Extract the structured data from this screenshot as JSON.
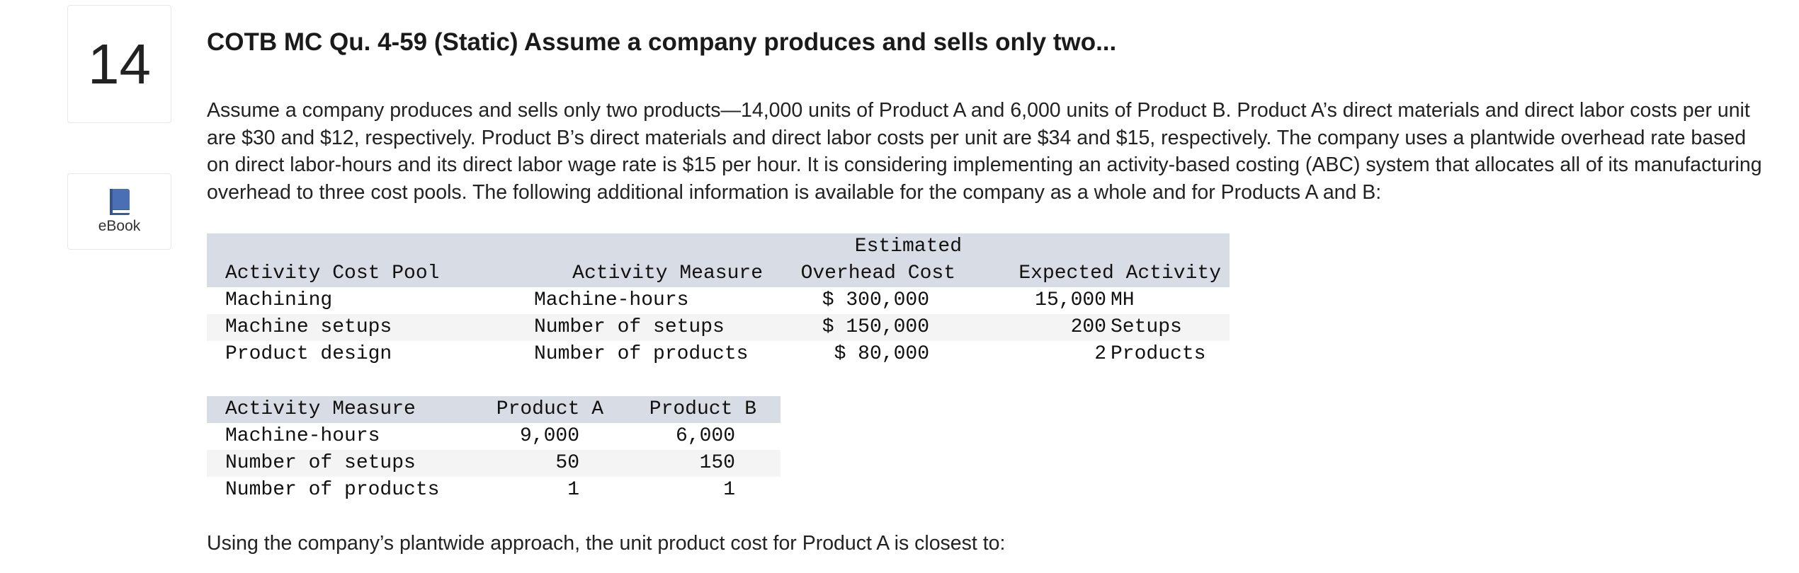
{
  "question_number": "14",
  "ebook": {
    "label": "eBook",
    "icon": "book-icon"
  },
  "title": "COTB MC Qu. 4-59 (Static) Assume a company produces and sells only two...",
  "prompt": "Assume a company produces and sells only two products—14,000 units of Product A and 6,000 units of Product B. Product A’s direct materials and direct labor costs per unit are $30 and $12, respectively. Product B’s direct materials and direct labor costs per unit are $34 and $15, respectively. The company uses a plantwide overhead rate based on direct labor-hours and its direct labor wage rate is $15 per hour. It is considering implementing an activity-based costing (ABC) system that allocates all of its manufacturing overhead to three cost pools. The following additional information is available for the company as a whole and for Products A and B:",
  "cost_pool_table": {
    "headers": {
      "pool": "Activity Cost Pool",
      "measure": "Activity Measure",
      "cost_line1": "Estimated",
      "cost_line2": "Overhead Cost",
      "activity": "Expected Activity"
    },
    "rows": [
      {
        "pool": "Machining",
        "measure": "Machine-hours",
        "cost": "$ 300,000",
        "qty": "15,000",
        "unit": "MH"
      },
      {
        "pool": "Machine setups",
        "measure": "Number of setups",
        "cost": "$ 150,000",
        "qty": "200",
        "unit": "Setups"
      },
      {
        "pool": "Product design",
        "measure": "Number of products",
        "cost": "$ 80,000",
        "qty": "2",
        "unit": "Products"
      }
    ]
  },
  "product_table": {
    "headers": {
      "measure": "Activity Measure",
      "a": "Product A",
      "b": "Product B"
    },
    "rows": [
      {
        "measure": "Machine-hours",
        "a": "9,000",
        "b": "6,000"
      },
      {
        "measure": "Number of setups",
        "a": "50",
        "b": "150"
      },
      {
        "measure": "Number of products",
        "a": "1",
        "b": "1"
      }
    ]
  },
  "question": "Using the company’s plantwide approach, the unit product cost for Product A is closest to:",
  "colors": {
    "header_bg": "#d8dce5",
    "alt_row_bg": "#f4f4f4",
    "ebook_icon": "#4a6fb5"
  }
}
